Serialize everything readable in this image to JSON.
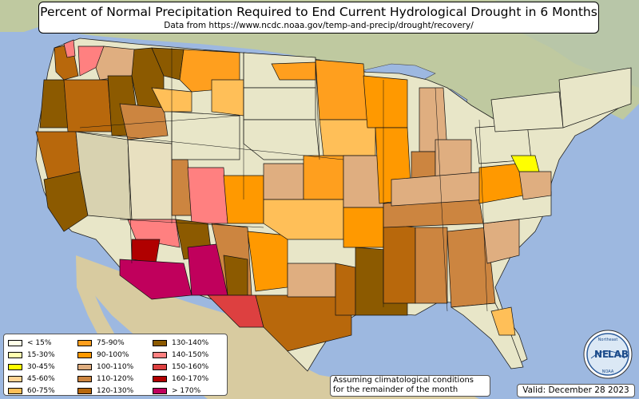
{
  "title": "Percent of Normal Precipitation Required to End Current Hydrological Drought in 6 Months",
  "subtitle": "Data from https://www.ncdc.noaa.gov/temp-and-precip/drought/recovery/",
  "legend": {
    "items": [
      {
        "label": "< 15%",
        "color": "#ffffe8"
      },
      {
        "label": "15-30%",
        "color": "#ffffb0"
      },
      {
        "label": "30-45%",
        "color": "#ffff00"
      },
      {
        "label": "45-60%",
        "color": "#ffd494"
      },
      {
        "label": "60-75%",
        "color": "#ffbf58"
      },
      {
        "label": "75-90%",
        "color": "#ff9f1e"
      },
      {
        "label": "90-100%",
        "color": "#ff9900"
      },
      {
        "label": "100-110%",
        "color": "#dfae80"
      },
      {
        "label": "110-120%",
        "color": "#cc8540"
      },
      {
        "label": "120-130%",
        "color": "#b8680c"
      },
      {
        "label": "130-140%",
        "color": "#8c5a00"
      },
      {
        "label": "140-150%",
        "color": "#ff8080"
      },
      {
        "label": "150-160%",
        "color": "#dd4040"
      },
      {
        "label": "160-170%",
        "color": "#b00000"
      },
      {
        "label": "> 170%",
        "color": "#c0005c"
      }
    ]
  },
  "note": {
    "line1": "Assuming climatological conditions",
    "line2": "for the remainder of the month"
  },
  "valid": "Valid: December 28 2023",
  "logo": {
    "text_left": "NE",
    "text_right": "LAB",
    "text_top": "Northeast",
    "text_bottom": "NOAA"
  }
}
